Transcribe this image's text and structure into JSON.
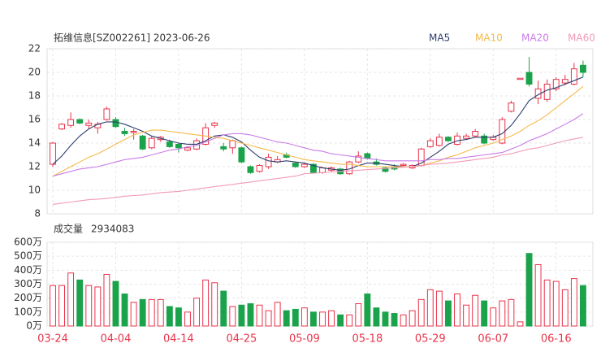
{
  "chart_data": {
    "type": "candlestick",
    "title": "拓维信息[SZ002261] 2023-06-26",
    "categories": [
      "03-24",
      null,
      null,
      null,
      null,
      null,
      null,
      "04-04",
      null,
      null,
      null,
      null,
      null,
      null,
      "04-14",
      null,
      null,
      null,
      null,
      null,
      null,
      "04-25",
      null,
      null,
      null,
      null,
      null,
      null,
      "05-09",
      null,
      null,
      null,
      null,
      null,
      null,
      "05-18",
      null,
      null,
      null,
      null,
      null,
      null,
      "05-29",
      null,
      null,
      null,
      null,
      null,
      null,
      "06-07",
      null,
      null,
      null,
      null,
      null,
      null,
      "06-16",
      null,
      null,
      null
    ],
    "open": [
      12.2,
      15.2,
      15.5,
      16.0,
      15.5,
      15.3,
      16.0,
      16.0,
      15.0,
      14.9,
      14.6,
      13.6,
      14.3,
      14.1,
      13.9,
      13.4,
      13.5,
      13.9,
      15.5,
      13.7,
      13.6,
      13.6,
      12.0,
      11.6,
      12.0,
      12.4,
      13.0,
      12.3,
      12.0,
      12.2,
      11.5,
      11.7,
      11.8,
      11.4,
      12.4,
      13.1,
      12.4,
      11.9,
      12.0,
      12.1,
      11.9,
      12.1,
      13.7,
      13.8,
      14.5,
      13.9,
      14.4,
      14.6,
      14.6,
      14.3,
      14.0,
      16.7,
      19.4,
      20.0,
      17.8,
      17.7,
      18.6,
      19.1,
      19.0,
      20.6
    ],
    "high": [
      14.1,
      15.7,
      16.6,
      16.1,
      16.0,
      15.8,
      17.1,
      16.2,
      15.3,
      15.2,
      14.7,
      14.6,
      14.6,
      14.3,
      14.0,
      13.7,
      14.4,
      15.7,
      15.8,
      14.0,
      14.3,
      13.7,
      12.1,
      12.2,
      13.1,
      12.9,
      13.2,
      12.4,
      12.3,
      12.3,
      12.0,
      12.0,
      11.9,
      12.5,
      13.3,
      13.2,
      12.7,
      12.0,
      12.2,
      12.3,
      12.2,
      13.6,
      14.4,
      14.8,
      14.6,
      14.9,
      14.8,
      15.2,
      14.8,
      14.7,
      16.2,
      17.6,
      19.5,
      21.3,
      19.3,
      19.4,
      19.6,
      19.8,
      20.8,
      21.0
    ],
    "low": [
      12.0,
      15.1,
      15.3,
      15.6,
      15.2,
      14.8,
      15.9,
      15.3,
      14.6,
      14.3,
      13.4,
      13.5,
      14.1,
      13.6,
      13.2,
      13.3,
      13.4,
      13.8,
      15.3,
      13.3,
      13.1,
      12.3,
      11.4,
      11.5,
      11.8,
      12.3,
      12.7,
      11.9,
      11.9,
      11.4,
      11.4,
      11.6,
      11.3,
      11.3,
      12.3,
      12.6,
      12.1,
      11.5,
      11.7,
      12.0,
      11.8,
      12.0,
      13.6,
      13.7,
      14.1,
      13.8,
      14.3,
      14.5,
      13.9,
      14.2,
      13.9,
      16.6,
      19.4,
      18.8,
      17.3,
      17.5,
      18.4,
      18.9,
      18.9,
      19.6
    ],
    "close": [
      14.0,
      15.6,
      16.0,
      15.7,
      15.7,
      15.6,
      16.9,
      15.4,
      14.8,
      15.0,
      13.5,
      14.4,
      14.5,
      13.7,
      13.6,
      13.6,
      14.2,
      15.3,
      15.7,
      13.5,
      14.2,
      12.4,
      11.5,
      12.1,
      12.8,
      12.6,
      12.8,
      12.0,
      12.2,
      11.5,
      11.9,
      11.9,
      11.4,
      12.4,
      12.9,
      12.7,
      12.2,
      11.6,
      11.8,
      12.2,
      12.1,
      13.5,
      14.2,
      14.5,
      14.2,
      14.6,
      14.6,
      15.0,
      14.0,
      14.5,
      16.0,
      17.4,
      19.5,
      19.0,
      18.6,
      19.0,
      19.4,
      19.4,
      20.3,
      20.0
    ],
    "up_color": "#e8334a",
    "down_color": "#1aa34a",
    "series": [
      {
        "name": "MA5",
        "color": "#2c3e6e",
        "values": [
          12.2,
          12.9,
          13.8,
          14.6,
          15.2,
          15.6,
          15.8,
          15.8,
          15.6,
          15.3,
          15.0,
          14.6,
          14.4,
          14.2,
          14.0,
          13.9,
          13.9,
          14.2,
          14.6,
          14.7,
          14.5,
          14.1,
          13.4,
          12.8,
          12.5,
          12.4,
          12.5,
          12.4,
          12.3,
          12.1,
          11.9,
          11.8,
          11.7,
          11.8,
          12.1,
          12.3,
          12.3,
          12.2,
          12.1,
          12.0,
          12.0,
          12.3,
          12.8,
          13.3,
          13.9,
          14.2,
          14.3,
          14.5,
          14.5,
          14.5,
          14.8,
          15.5,
          16.5,
          17.6,
          18.1,
          18.5,
          18.7,
          19.0,
          19.3,
          19.6
        ]
      },
      {
        "name": "MA10",
        "color": "#f5b94a",
        "values": [
          11.2,
          11.6,
          12.0,
          12.4,
          12.8,
          13.1,
          13.5,
          13.9,
          14.3,
          14.7,
          14.9,
          15.1,
          15.1,
          15.0,
          14.9,
          14.8,
          14.7,
          14.6,
          14.5,
          14.4,
          14.2,
          14.0,
          13.8,
          13.6,
          13.4,
          13.2,
          13.0,
          12.8,
          12.6,
          12.5,
          12.4,
          12.3,
          12.2,
          12.2,
          12.1,
          12.0,
          12.0,
          12.0,
          12.0,
          12.0,
          12.0,
          12.1,
          12.3,
          12.5,
          12.8,
          13.0,
          13.3,
          13.6,
          13.8,
          14.0,
          14.3,
          14.6,
          15.0,
          15.5,
          15.9,
          16.4,
          17.0,
          17.6,
          18.2,
          18.8
        ]
      },
      {
        "name": "MA20",
        "color": "#c97ce8",
        "values": [
          11.2,
          11.4,
          11.6,
          11.8,
          11.9,
          12.0,
          12.2,
          12.4,
          12.6,
          12.7,
          12.8,
          13.0,
          13.2,
          13.4,
          13.5,
          13.7,
          13.8,
          14.1,
          14.4,
          14.7,
          14.8,
          14.8,
          14.7,
          14.5,
          14.3,
          14.1,
          14.0,
          13.8,
          13.6,
          13.4,
          13.3,
          13.1,
          13.0,
          12.9,
          12.8,
          12.7,
          12.6,
          12.5,
          12.5,
          12.5,
          12.5,
          12.5,
          12.6,
          12.6,
          12.7,
          12.7,
          12.8,
          12.9,
          13.0,
          13.1,
          13.2,
          13.5,
          13.8,
          14.2,
          14.5,
          14.8,
          15.2,
          15.6,
          16.0,
          16.5
        ]
      },
      {
        "name": "MA60",
        "color": "#f29ab8",
        "values": [
          8.8,
          8.9,
          9.0,
          9.1,
          9.2,
          9.25,
          9.3,
          9.4,
          9.5,
          9.55,
          9.6,
          9.7,
          9.8,
          9.85,
          9.9,
          10.0,
          10.1,
          10.2,
          10.3,
          10.4,
          10.5,
          10.6,
          10.7,
          10.8,
          10.9,
          11.0,
          11.1,
          11.2,
          11.4,
          11.45,
          11.5,
          11.55,
          11.6,
          11.65,
          11.7,
          11.75,
          11.8,
          11.85,
          11.9,
          11.95,
          12.0,
          12.1,
          12.2,
          12.25,
          12.3,
          12.4,
          12.5,
          12.6,
          12.7,
          12.8,
          13.0,
          13.1,
          13.3,
          13.5,
          13.6,
          13.8,
          14.0,
          14.2,
          14.35,
          14.5
        ]
      }
    ],
    "ylim": [
      8,
      22
    ],
    "yticks": [
      8,
      10,
      12,
      14,
      16,
      18,
      20,
      22
    ],
    "grid": true,
    "volume": {
      "title": "成交量",
      "latest": 2934083,
      "values": [
        290,
        290,
        380,
        330,
        290,
        280,
        370,
        320,
        230,
        170,
        190,
        190,
        190,
        140,
        130,
        100,
        200,
        330,
        310,
        250,
        140,
        150,
        160,
        150,
        110,
        170,
        110,
        120,
        130,
        100,
        100,
        110,
        80,
        80,
        160,
        230,
        130,
        100,
        90,
        80,
        110,
        190,
        260,
        250,
        180,
        230,
        150,
        220,
        180,
        130,
        180,
        190,
        30,
        520,
        440,
        330,
        320,
        260,
        340,
        290
      ],
      "ylim": [
        0,
        600
      ],
      "yticks": [
        {
          "value": 0,
          "label": "0万"
        },
        {
          "value": 100,
          "label": "100万"
        },
        {
          "value": 200,
          "label": "200万"
        },
        {
          "value": 300,
          "label": "300万"
        },
        {
          "value": 400,
          "label": "400万"
        },
        {
          "value": 500,
          "label": "500万"
        },
        {
          "value": 600,
          "label": "600万"
        }
      ]
    }
  }
}
